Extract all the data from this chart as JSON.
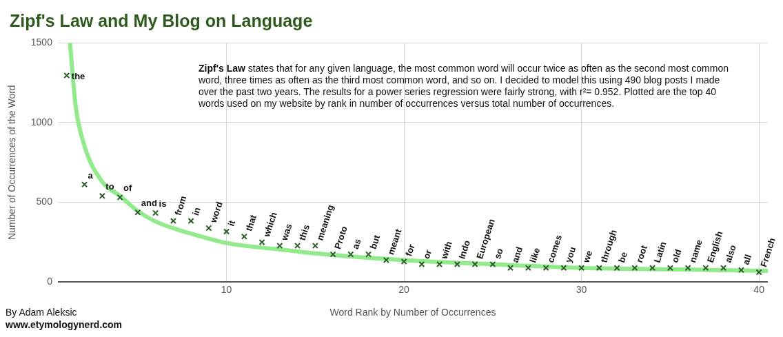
{
  "chart_data": {
    "type": "scatter",
    "title": "Zipf's Law and My Blog on Language",
    "xlabel": "Word Rank by Number of Occurrences",
    "ylabel": "Number of Occurrences of the Word",
    "xlim": [
      0.5,
      40.5
    ],
    "xticks": [
      10,
      20,
      30,
      40
    ],
    "ylim": [
      0,
      1500
    ],
    "yticks": [
      0,
      500,
      1000,
      1500
    ],
    "grid": true,
    "legend": false,
    "marker": "cross",
    "series": [
      {
        "type": "line",
        "marker": "none",
        "color": "#92ea8c",
        "x": [
          1.18,
          1.5,
          2,
          3,
          4,
          5,
          6,
          8,
          10,
          13,
          16,
          20,
          25,
          30,
          35,
          40.5
        ],
        "values": [
          1500,
          1107,
          853,
          629,
          540,
          446,
          380,
          304,
          245,
          205,
          170,
          138,
          112,
          89,
          80,
          71
        ]
      },
      {
        "color": "#2e5a2a",
        "x": [
          1,
          2,
          3,
          4,
          5,
          6,
          7,
          8,
          9,
          10,
          11,
          12,
          13,
          14,
          15,
          16,
          17,
          18,
          19,
          20,
          21,
          22,
          23,
          24,
          25,
          26,
          27,
          28,
          29,
          30,
          31,
          32,
          33,
          34,
          35,
          36,
          37,
          38,
          39,
          40
        ],
        "values": [
          1295,
          612,
          540,
          531,
          437,
          433,
          384,
          384,
          339,
          317,
          286,
          250,
          228,
          228,
          228,
          174,
          174,
          174,
          138,
          129,
          112,
          112,
          112,
          112,
          112,
          89,
          89,
          89,
          89,
          89,
          89,
          89,
          89,
          89,
          89,
          89,
          89,
          89,
          76,
          62
        ]
      }
    ],
    "annotations": [
      "Zipf's Law",
      "states that for any given language, the most common word will occur twice as often as the second most common word, three times as often as the third most common word, and so on. I decided to model this using 490 blog posts I made over the past two years. The results for a power series regression were fairly strong, with r²= 0.952. Plotted are the top 40 words used on my website by rank in number of occurrences versus total number of occurrences.",
      "By Adam Aleksic",
      "www.etymologynerd.com",
      {
        "text": "the",
        "x": 1,
        "y": 1295
      },
      {
        "text": "a",
        "x": 2,
        "y": 612
      },
      {
        "text": "to",
        "x": 3,
        "y": 540
      },
      {
        "text": "of",
        "x": 4,
        "y": 531
      },
      {
        "text": "and",
        "x": 5,
        "y": 437
      },
      {
        "text": "is",
        "x": 6,
        "y": 433
      },
      {
        "text": "from",
        "x": 7,
        "y": 384
      },
      {
        "text": "in",
        "x": 8,
        "y": 384
      },
      {
        "text": "word",
        "x": 9,
        "y": 339
      },
      {
        "text": "it",
        "x": 10,
        "y": 317
      },
      {
        "text": "that",
        "x": 11,
        "y": 286
      },
      {
        "text": "which",
        "x": 12,
        "y": 250
      },
      {
        "text": "was",
        "x": 13,
        "y": 228
      },
      {
        "text": "this",
        "x": 14,
        "y": 228
      },
      {
        "text": "meaning",
        "x": 15,
        "y": 228
      },
      {
        "text": "Proto",
        "x": 16,
        "y": 174
      },
      {
        "text": "as",
        "x": 17,
        "y": 174
      },
      {
        "text": "but",
        "x": 18,
        "y": 174
      },
      {
        "text": "meant",
        "x": 19,
        "y": 138
      },
      {
        "text": "for",
        "x": 20,
        "y": 129
      },
      {
        "text": "or",
        "x": 21,
        "y": 112
      },
      {
        "text": "with",
        "x": 22,
        "y": 112
      },
      {
        "text": "Indo",
        "x": 23,
        "y": 112
      },
      {
        "text": "European",
        "x": 24,
        "y": 112
      },
      {
        "text": "so",
        "x": 25,
        "y": 112
      },
      {
        "text": "and",
        "x": 26,
        "y": 89
      },
      {
        "text": "like",
        "x": 27,
        "y": 89
      },
      {
        "text": "comes",
        "x": 28,
        "y": 89
      },
      {
        "text": "you",
        "x": 29,
        "y": 89
      },
      {
        "text": "we",
        "x": 30,
        "y": 89
      },
      {
        "text": "through",
        "x": 31,
        "y": 89
      },
      {
        "text": "be",
        "x": 32,
        "y": 89
      },
      {
        "text": "root",
        "x": 33,
        "y": 89
      },
      {
        "text": "Latin",
        "x": 34,
        "y": 89
      },
      {
        "text": "old",
        "x": 35,
        "y": 89
      },
      {
        "text": "name",
        "x": 36,
        "y": 89
      },
      {
        "text": "English",
        "x": 37,
        "y": 89
      },
      {
        "text": "also",
        "x": 38,
        "y": 89
      },
      {
        "text": "all",
        "x": 39,
        "y": 76
      },
      {
        "text": "French",
        "x": 40,
        "y": 62
      }
    ]
  }
}
